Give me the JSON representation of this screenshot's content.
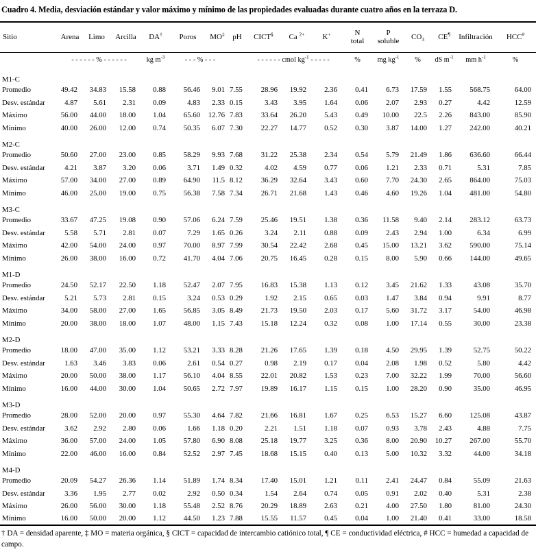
{
  "title": "Cuadro 4. Media, desviación estándar y valor  máximo y mínimo de las propiedades evaluadas durante cuatro años en la terraza D.",
  "footnote": "† DA = densidad aparente, ‡ MO = materia orgánica, § CICT = capacidad de intercambio catiónico total, ¶ CE = conductividad eléctrica, # HCC = humedad a capacidad de campo.",
  "table": {
    "columns": [
      {
        "t": "Sitio"
      },
      {
        "t": "Arena"
      },
      {
        "t": "Limo"
      },
      {
        "t": "Arcilla"
      },
      {
        "t": "DA",
        "sup": "†"
      },
      {
        "t": "Poros"
      },
      {
        "t": "MO",
        "sup": "‡"
      },
      {
        "t": "pH"
      },
      {
        "t": "CICT",
        "sup": "§"
      },
      {
        "t": "Ca ",
        "sup": "2+"
      },
      {
        "t": "K",
        "sup": "+"
      },
      {
        "t": "N",
        "t2": "total"
      },
      {
        "t": "P",
        "t2": "soluble"
      },
      {
        "t": "CO",
        "sub": "3"
      },
      {
        "t": "CE",
        "sup": "¶"
      },
      {
        "t": "Infiltración"
      },
      {
        "t": "HCC",
        "sup": "#"
      }
    ],
    "units": [
      {
        "t": "",
        "span": 1
      },
      {
        "t": "- - - - - - % - - - - - -",
        "span": 3
      },
      {
        "t": "kg m",
        "sup": "-3",
        "span": 1
      },
      {
        "t": "- - - % - - -",
        "span": 2
      },
      {
        "t": "",
        "span": 1
      },
      {
        "t": "- - - - - - cmol kg",
        "sup": "-1",
        "post": " - - - - -",
        "span": 3
      },
      {
        "t": "%",
        "span": 1
      },
      {
        "t": "mg kg",
        "sup": "-1",
        "span": 1
      },
      {
        "t": "%",
        "span": 1
      },
      {
        "t": "dS m",
        "sup": "-1",
        "span": 1
      },
      {
        "t": "mm h",
        "sup": "-1",
        "span": 1
      },
      {
        "t": "%",
        "span": 1
      }
    ],
    "blocks": [
      {
        "site": "M1-C",
        "rows": [
          {
            "label": "Promedio",
            "values": [
              "49.42",
              "34.83",
              "15.58",
              "0.88",
              "56.46",
              "9.01",
              "7.55",
              "28.96",
              "19.92",
              "2.36",
              "0.41",
              "6.73",
              "17.59",
              "1.55",
              "568.75",
              "64.00"
            ]
          },
          {
            "label": "Desv. estándar",
            "values": [
              "4.87",
              "5.61",
              "2.31",
              "0.09",
              "4.83",
              "2.33",
              "0.15",
              "3.43",
              "3.95",
              "1.64",
              "0.06",
              "2.07",
              "2.93",
              "0.27",
              "4.42",
              "12.59"
            ]
          },
          {
            "label": "Máximo",
            "values": [
              "56.00",
              "44.00",
              "18.00",
              "1.04",
              "65.60",
              "12.76",
              "7.83",
              "33.64",
              "26.20",
              "5.43",
              "0.49",
              "10.00",
              "22.5",
              "2.26",
              "843.00",
              "85.90"
            ]
          },
          {
            "label": "Mínimo",
            "values": [
              "40.00",
              "26.00",
              "12.00",
              "0.74",
              "50.35",
              "6.07",
              "7.30",
              "22.27",
              "14.77",
              "0.52",
              "0.30",
              "3.87",
              "14.00",
              "1.27",
              "242.00",
              "40.21"
            ]
          }
        ]
      },
      {
        "site": "M2-C",
        "rows": [
          {
            "label": "Promedio",
            "values": [
              "50.60",
              "27.00",
              "23.00",
              "0.85",
              "58.29",
              "9.93",
              "7.68",
              "31.22",
              "25.38",
              "2.34",
              "0.54",
              "5.79",
              "21.49",
              "1.86",
              "636.60",
              "66.44"
            ]
          },
          {
            "label": "Desv. estándar",
            "values": [
              "4.21",
              "3.87",
              "3.20",
              "0.06",
              "3.71",
              "1.49",
              "0.32",
              "4.02",
              "4.59",
              "0.77",
              "0.06",
              "1.21",
              "2.33",
              "0.71",
              "5.31",
              "7.85"
            ]
          },
          {
            "label": "Máximo",
            "values": [
              "57.00",
              "34.00",
              "27.00",
              "0.89",
              "64.90",
              "11.5",
              "8.12",
              "36.29",
              "32.64",
              "3.43",
              "0.60",
              "7.70",
              "24.30",
              "2.65",
              "864.00",
              "75.03"
            ]
          },
          {
            "label": "Mínimo",
            "values": [
              "46.00",
              "25.00",
              "19.00",
              "0.75",
              "56.38",
              "7.58",
              "7.34",
              "26.71",
              "21.68",
              "1.43",
              "0.46",
              "4.60",
              "19.26",
              "1.04",
              "481.00",
              "54.80"
            ]
          }
        ]
      },
      {
        "site": "M3-C",
        "rows": [
          {
            "label": "Promedio",
            "values": [
              "33.67",
              "47.25",
              "19.08",
              "0.90",
              "57.06",
              "6.24",
              "7.59",
              "25.46",
              "19.51",
              "1.38",
              "0.36",
              "11.58",
              "9.40",
              "2.14",
              "283.12",
              "63.73"
            ]
          },
          {
            "label": "Desv. estándar",
            "values": [
              "5.58",
              "5.71",
              "2.81",
              "0.07",
              "7.29",
              "1.65",
              "0.26",
              "3.24",
              "2.11",
              "0.88",
              "0.09",
              "2.43",
              "2.94",
              "1.00",
              "6.34",
              "6.99"
            ]
          },
          {
            "label": "Máximo",
            "values": [
              "42.00",
              "54.00",
              "24.00",
              "0.97",
              "70.00",
              "8.97",
              "7.99",
              "30.54",
              "22.42",
              "2.68",
              "0.45",
              "15.00",
              "13.21",
              "3.62",
              "590.00",
              "75.14"
            ]
          },
          {
            "label": "Mínimo",
            "values": [
              "26.00",
              "38.00",
              "16.00",
              "0.72",
              "41.70",
              "4.04",
              "7.06",
              "20.75",
              "16.45",
              "0.28",
              "0.15",
              "8.00",
              "5.90",
              "0.66",
              "144.00",
              "49.65"
            ]
          }
        ]
      },
      {
        "site": "M1-D",
        "rows": [
          {
            "label": "Promedio",
            "values": [
              "24.50",
              "52.17",
              "22.50",
              "1.18",
              "52.47",
              "2.07",
              "7.95",
              "16.83",
              "15.38",
              "1.13",
              "0.12",
              "3.45",
              "21.62",
              "1.33",
              "43.08",
              "35.70"
            ]
          },
          {
            "label": "Desv. estándar",
            "values": [
              "5.21",
              "5.73",
              "2.81",
              "0.15",
              "3.24",
              "0.53",
              "0.29",
              "1.92",
              "2.15",
              "0.65",
              "0.03",
              "1.47",
              "3.84",
              "0.94",
              "9.91",
              "8.77"
            ]
          },
          {
            "label": "Máximo",
            "values": [
              "34.00",
              "58.00",
              "27.00",
              "1.65",
              "56.85",
              "3.05",
              "8.49",
              "21.73",
              "19.50",
              "2.03",
              "0.17",
              "5.60",
              "31.72",
              "3.17",
              "54.00",
              "46.98"
            ]
          },
          {
            "label": "Mínimo",
            "values": [
              "20.00",
              "38.00",
              "18.00",
              "1.07",
              "48.00",
              "1.15",
              "7.43",
              "15.18",
              "12.24",
              "0.32",
              "0.08",
              "1.00",
              "17.14",
              "0.55",
              "30.00",
              "23.38"
            ]
          }
        ]
      },
      {
        "site": "M2-D",
        "rows": [
          {
            "label": "Promedio",
            "values": [
              "18.00",
              "47.00",
              "35.00",
              "1.12",
              "53.21",
              "3.33",
              "8.28",
              "21.26",
              "17.65",
              "1.39",
              "0.18",
              "4.50",
              "29.95",
              "1.39",
              "52.75",
              "50.22"
            ]
          },
          {
            "label": "Desv. estándar",
            "values": [
              "1.63",
              "3.46",
              "3.83",
              "0.06",
              "2.61",
              "0.54",
              "0.27",
              "0.98",
              "2.19",
              "0.17",
              "0.04",
              "2.08",
              "1.98",
              "0.52",
              "5.80",
              "4.42"
            ]
          },
          {
            "label": "Máximo",
            "values": [
              "20.00",
              "50.00",
              "38.00",
              "1.17",
              "56.10",
              "4.04",
              "8.55",
              "22.01",
              "20.82",
              "1.53",
              "0.23",
              "7.00",
              "32.22",
              "1.99",
              "70.00",
              "56.60"
            ]
          },
          {
            "label": "Mínimo",
            "values": [
              "16.00",
              "44.00",
              "30.00",
              "1.04",
              "50.65",
              "2.72",
              "7.97",
              "19.89",
              "16.17",
              "1.15",
              "0.15",
              "1.00",
              "28.20",
              "0.90",
              "35.00",
              "46.95"
            ]
          }
        ]
      },
      {
        "site": "M3-D",
        "rows": [
          {
            "label": "Promedio",
            "values": [
              "28.00",
              "52.00",
              "20.00",
              "0.97",
              "55.30",
              "4.64",
              "7.82",
              "21.66",
              "16.81",
              "1.67",
              "0.25",
              "6.53",
              "15.27",
              "6.60",
              "125.08",
              "43.87"
            ]
          },
          {
            "label": "Desv. estándar",
            "values": [
              "3.62",
              "2.92",
              "2.80",
              "0.06",
              "1.66",
              "1.18",
              "0.20",
              "2.21",
              "1.51",
              "1.18",
              "0.07",
              "0.93",
              "3.78",
              "2.43",
              "4.88",
              "7.75"
            ]
          },
          {
            "label": "Máximo",
            "values": [
              "36.00",
              "57.00",
              "24.00",
              "1.05",
              "57.80",
              "6.90",
              "8.08",
              "25.18",
              "19.77",
              "3.25",
              "0.36",
              "8.00",
              "20.90",
              "10.27",
              "267.00",
              "55.70"
            ]
          },
          {
            "label": "Mínimo",
            "values": [
              "22.00",
              "46.00",
              "16.00",
              "0.84",
              "52.52",
              "2.97",
              "7.45",
              "18.68",
              "15.15",
              "0.40",
              "0.13",
              "5.00",
              "10.32",
              "3.32",
              "44.00",
              "34.18"
            ]
          }
        ]
      },
      {
        "site": "M4-D",
        "rows": [
          {
            "label": "Promedio",
            "values": [
              "20.09",
              "54.27",
              "26.36",
              "1.14",
              "51.89",
              "1.74",
              "8.34",
              "17.40",
              "15.01",
              "1.21",
              "0.11",
              "2.41",
              "24.47",
              "0.84",
              "55.09",
              "21.63"
            ]
          },
          {
            "label": "Desv. estándar",
            "values": [
              "3.36",
              "1.95",
              "2.77",
              "0.02",
              "2.92",
              "0.50",
              "0.34",
              "1.54",
              "2.64",
              "0.74",
              "0.05",
              "0.91",
              "2.02",
              "0.40",
              "5.31",
              "2.38"
            ]
          },
          {
            "label": "Máximo",
            "values": [
              "26.00",
              "56.00",
              "30.00",
              "1.18",
              "55.48",
              "2.52",
              "8.76",
              "20.29",
              "18.89",
              "2.63",
              "0.21",
              "4.00",
              "27.50",
              "1.80",
              "81.00",
              "24.30"
            ]
          },
          {
            "label": "Mínimo",
            "values": [
              "16.00",
              "50.00",
              "20.00",
              "1.12",
              "44.50",
              "1.23",
              "7.88",
              "15.55",
              "11.57",
              "0.45",
              "0.04",
              "1.00",
              "21.40",
              "0.41",
              "33.00",
              "18.58"
            ]
          }
        ]
      }
    ]
  }
}
